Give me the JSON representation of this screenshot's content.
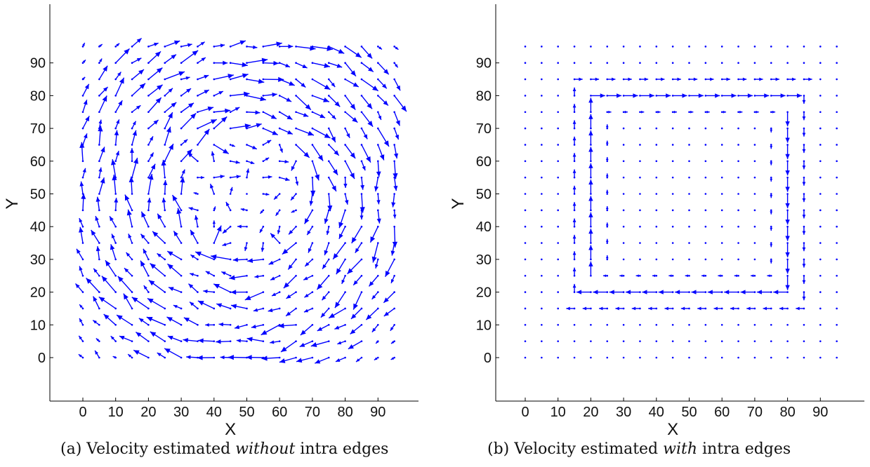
{
  "captions": [
    {
      "prefix": "(a) Velocity estimated ",
      "emph": "without",
      "suffix": " intra edges"
    },
    {
      "prefix": "(b) Velocity estimated ",
      "emph": "with",
      "suffix": " intra edges"
    }
  ],
  "colors": {
    "arrow": "#0000ff",
    "axis": "#000000",
    "text": "#111111"
  },
  "chart_data": [
    {
      "type": "quiver",
      "xlabel": "X",
      "ylabel": "Y",
      "xlim": [
        -10,
        100
      ],
      "ylim": [
        -13,
        108
      ],
      "xticks": [
        0,
        10,
        20,
        30,
        40,
        50,
        60,
        70,
        80,
        90
      ],
      "yticks": [
        0,
        10,
        20,
        30,
        40,
        50,
        60,
        70,
        80,
        90
      ],
      "grid": {
        "x": [
          0,
          95,
          5
        ],
        "y": [
          0,
          95,
          5
        ]
      },
      "field": "rotational_noisy",
      "field_note": "arrow vectors at every 5-unit grid node; clockwise rotation about (50,50), noisy estimates"
    },
    {
      "type": "quiver",
      "xlabel": "X",
      "ylabel": "Y",
      "xlim": [
        -10,
        100
      ],
      "ylim": [
        -13,
        108
      ],
      "xticks": [
        0,
        10,
        20,
        30,
        40,
        50,
        60,
        70,
        80,
        90
      ],
      "yticks": [
        0,
        10,
        20,
        30,
        40,
        50,
        60,
        70,
        80,
        90
      ],
      "grid": {
        "x": [
          0,
          95,
          5
        ],
        "y": [
          0,
          95,
          5
        ]
      },
      "field": "rotational_clean",
      "field_note": "arrow vectors at every 5-unit grid node; smooth clockwise rectangular vortex about (50,50)"
    }
  ]
}
